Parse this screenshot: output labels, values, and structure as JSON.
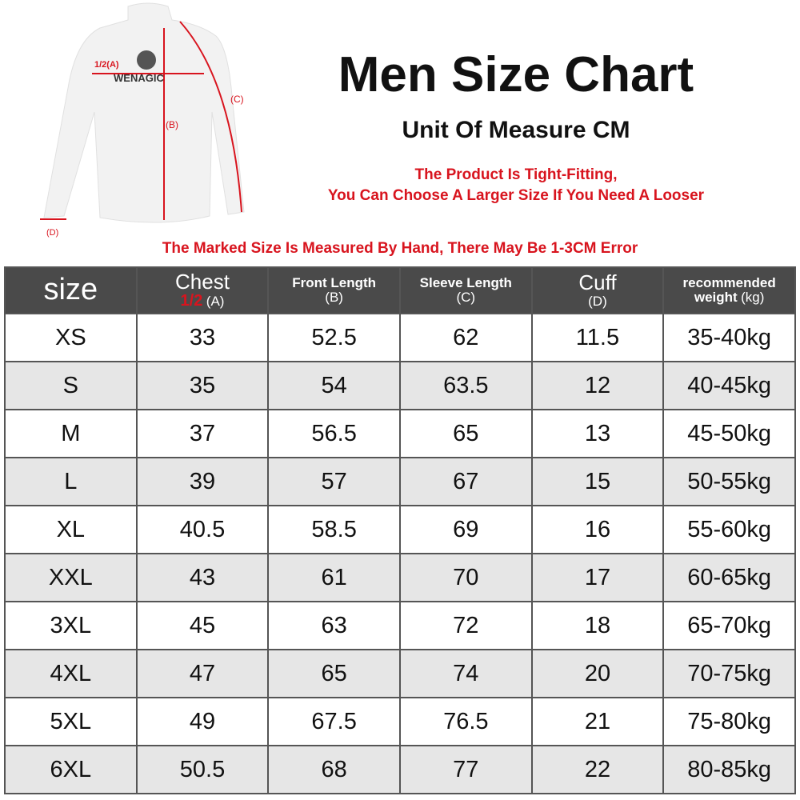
{
  "title": "Men Size Chart",
  "unit": "Unit Of Measure CM",
  "notes": {
    "fit_line1": "The Product Is Tight-Fitting,",
    "fit_line2": "You Can Choose A Larger Size If You Need A Looser",
    "error": "The Marked Size Is Measured By Hand, There May Be 1-3CM Error"
  },
  "diagram": {
    "brand": "WENAGIC",
    "label_a": "1/2(A)",
    "label_b": "(B)",
    "label_c": "(C)",
    "label_d": "(D)",
    "arrow_color": "#d8141e"
  },
  "headers": {
    "size": "size",
    "chest": "Chest",
    "chest_half": "1/2",
    "chest_sub": "(A)",
    "front": "Front Length",
    "front_sub": "(B)",
    "sleeve": "Sleeve Length",
    "sleeve_sub": "(C)",
    "cuff": "Cuff",
    "cuff_sub": "(D)",
    "weight1": "recommended",
    "weight2": "weight",
    "weight_unit": "(kg)"
  },
  "rows": [
    [
      "XS",
      "33",
      "52.5",
      "62",
      "11.5",
      "35-40kg"
    ],
    [
      "S",
      "35",
      "54",
      "63.5",
      "12",
      "40-45kg"
    ],
    [
      "M",
      "37",
      "56.5",
      "65",
      "13",
      "45-50kg"
    ],
    [
      "L",
      "39",
      "57",
      "67",
      "15",
      "50-55kg"
    ],
    [
      "XL",
      "40.5",
      "58.5",
      "69",
      "16",
      "55-60kg"
    ],
    [
      "XXL",
      "43",
      "61",
      "70",
      "17",
      "60-65kg"
    ],
    [
      "3XL",
      "45",
      "63",
      "72",
      "18",
      "65-70kg"
    ],
    [
      "4XL",
      "47",
      "65",
      "74",
      "20",
      "70-75kg"
    ],
    [
      "5XL",
      "49",
      "67.5",
      "76.5",
      "21",
      "75-80kg"
    ],
    [
      "6XL",
      "50.5",
      "68",
      "77",
      "22",
      "80-85kg"
    ]
  ]
}
